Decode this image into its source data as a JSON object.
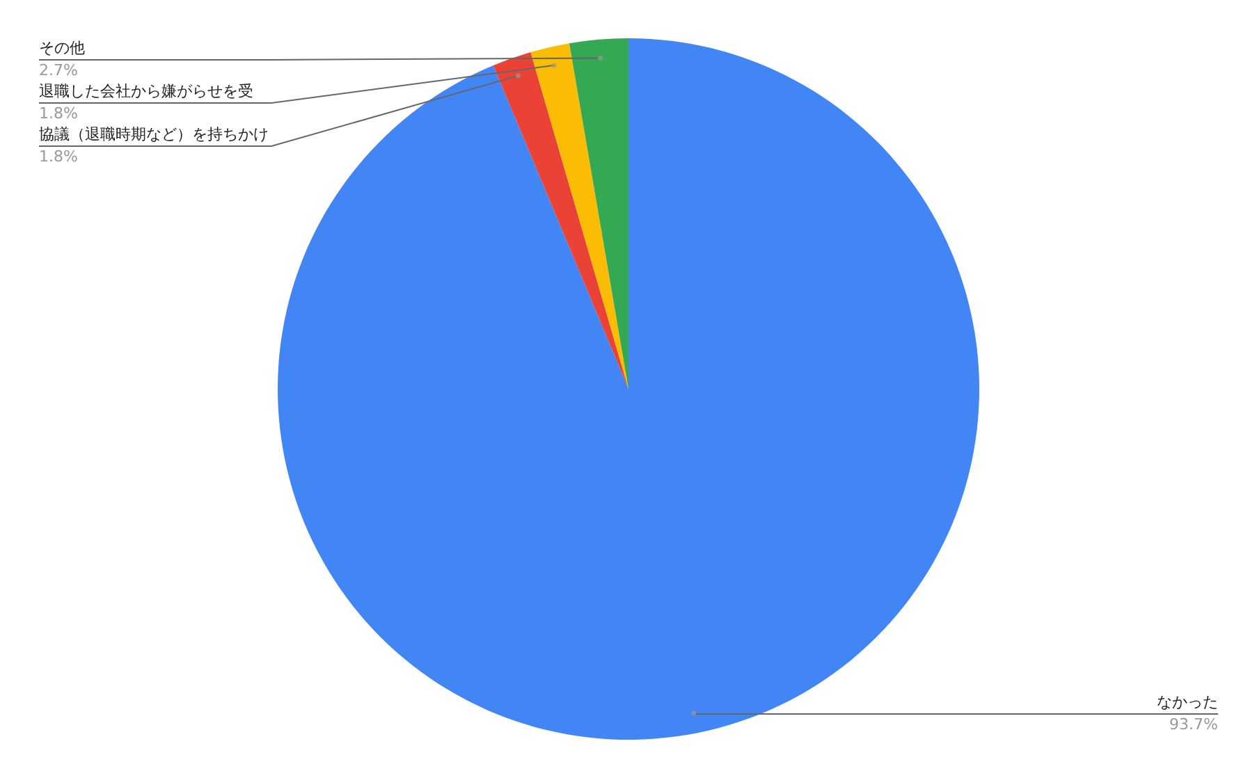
{
  "chart_data": {
    "type": "pie",
    "categories": [
      "なかった",
      "協議（退職時期など）を持ちかけ",
      "退職した会社から嫌がらせを受",
      "その他"
    ],
    "values": [
      93.7,
      1.8,
      1.8,
      2.7
    ],
    "colors": [
      "#4285f4",
      "#ea4335",
      "#fbbc04",
      "#34a853"
    ],
    "value_labels": [
      "93.7%",
      "1.8%",
      "1.8%",
      "2.7%"
    ]
  }
}
